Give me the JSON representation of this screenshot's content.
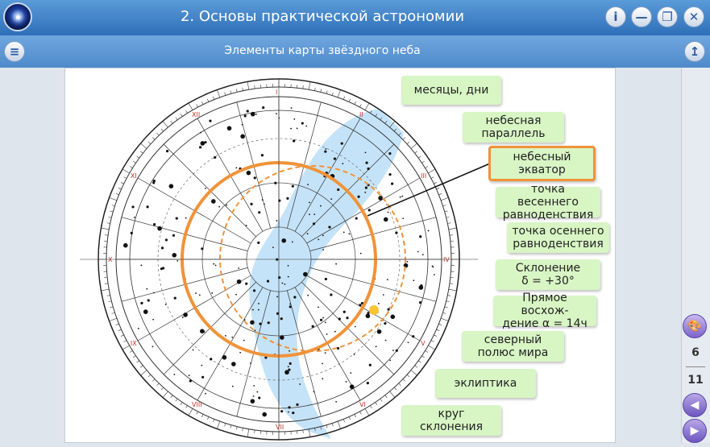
{
  "header": {
    "title": "2. Основы практической астрономии",
    "info_icon": "i",
    "minimize_icon": "—",
    "maximize_icon": "❐",
    "close_icon": "✕"
  },
  "subheader": {
    "title": "Элементы карты звёздного неба",
    "menu_icon": "≡",
    "up_icon": "↥"
  },
  "map": {
    "ring_labels": [
      "I",
      "II",
      "III",
      "IV",
      "V",
      "VI",
      "VII",
      "VIII",
      "IX",
      "X",
      "XI",
      "XII"
    ],
    "ecliptic_color": "#f0933a",
    "equator_color": "#f0933a",
    "milkyway_color": "#bfe0f7"
  },
  "labels": [
    "месяцы, дни",
    "небесная\nпараллель",
    "небесный\nэкватор",
    "точка весеннего\nравноденствия",
    "точка осеннего\nравноденствия",
    "Склонение\nδ = +30°",
    "Прямое восхож-\nдение α = 14ч",
    "северный\nполюс мира",
    "эклиптика",
    "круг склонения"
  ],
  "sidebar": {
    "palette_icon": "palette",
    "current_page": "6",
    "total_pages": "11",
    "prev_icon": "◀",
    "next_icon": "▶"
  }
}
